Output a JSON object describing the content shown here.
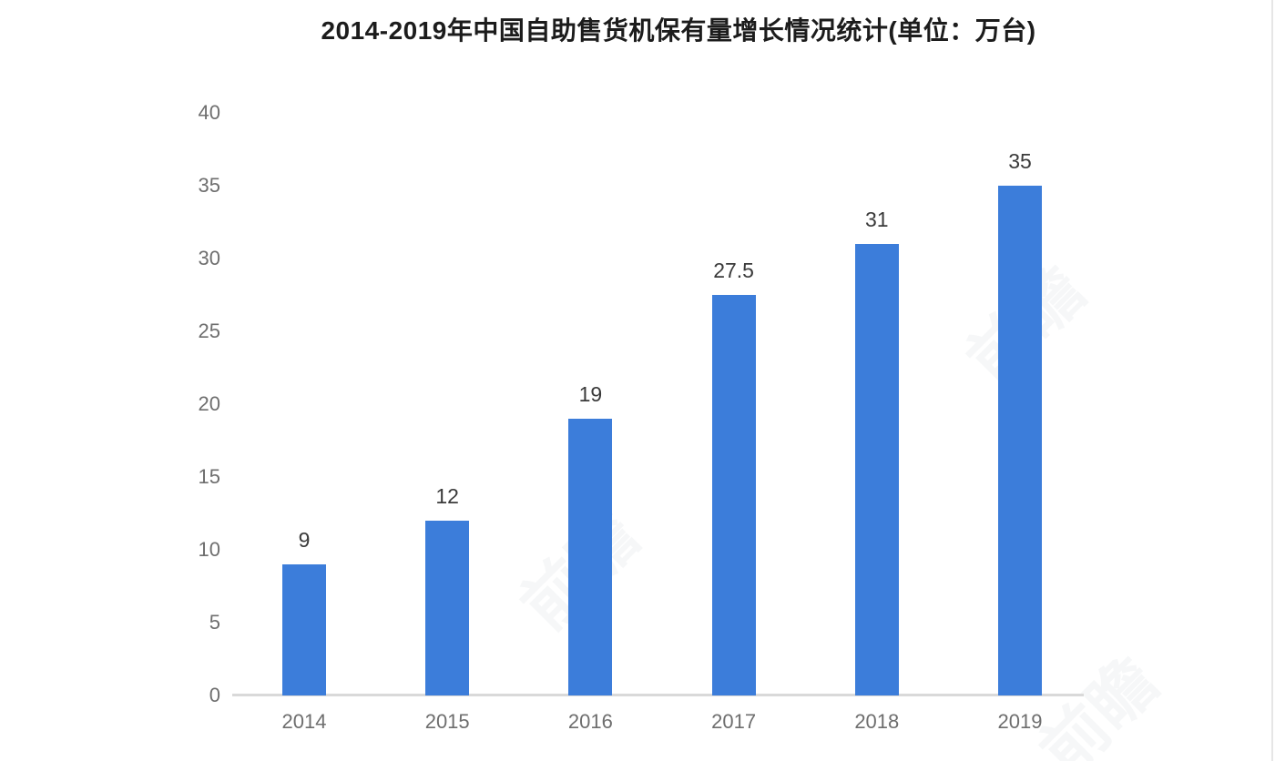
{
  "title": "2014-2019年中国自助售货机保有量增长情况统计(单位：万台)",
  "watermark_text": "前瞻",
  "colors": {
    "bar": "#3c7dda",
    "axis_line": "#d9d9d9",
    "tick_label": "#6e6e6e",
    "data_label": "#3a3a3a",
    "title": "#1c1c1c",
    "background": "#ffffff"
  },
  "chart_data": {
    "type": "bar",
    "title": "2014-2019年中国自助售货机保有量增长情况统计(单位：万台)",
    "categories": [
      "2014",
      "2015",
      "2016",
      "2017",
      "2018",
      "2019"
    ],
    "values": [
      9,
      12,
      19,
      27.5,
      31,
      35
    ],
    "bar_labels": [
      "9",
      "12",
      "19",
      "27.5",
      "31",
      "35"
    ],
    "xlabel": "",
    "ylabel": "",
    "unit": "万台",
    "ylim": [
      0,
      40
    ],
    "yticks": [
      0,
      5,
      10,
      15,
      20,
      25,
      30,
      35,
      40
    ],
    "grid": false,
    "legend": false,
    "bar_color": "#3c7dda"
  }
}
